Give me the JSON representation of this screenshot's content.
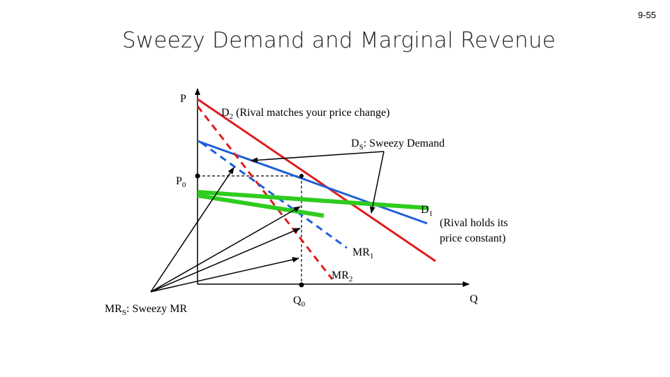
{
  "slide_number": "9-55",
  "title": "Sweezy Demand and Marginal Revenue",
  "labels": {
    "p_axis": "P",
    "q_axis": "Q",
    "p0_main": "P",
    "p0_sub": "0",
    "q0_main": "Q",
    "q0_sub": "0",
    "d2_main": "D",
    "d2_sub": "2",
    "d2_rest": " (Rival matches your price change)",
    "ds_main": "D",
    "ds_sub": "S",
    "ds_rest": ": Sweezy Demand",
    "d1_main": "D",
    "d1_sub": "1",
    "d1_note_line1": "(Rival holds its",
    "d1_note_line2": "price constant)",
    "mr1_main": "MR",
    "mr1_sub": "1",
    "mr2_main": "MR",
    "mr2_sub": "2",
    "mrs_main": "MR",
    "mrs_sub": "S",
    "mrs_rest": ": Sweezy MR"
  },
  "colors": {
    "d1_line": "#1f5fd6",
    "d2_line": "#e01b1b",
    "sweezy_mr": "#2ecc1f",
    "axis": "#000000"
  }
}
